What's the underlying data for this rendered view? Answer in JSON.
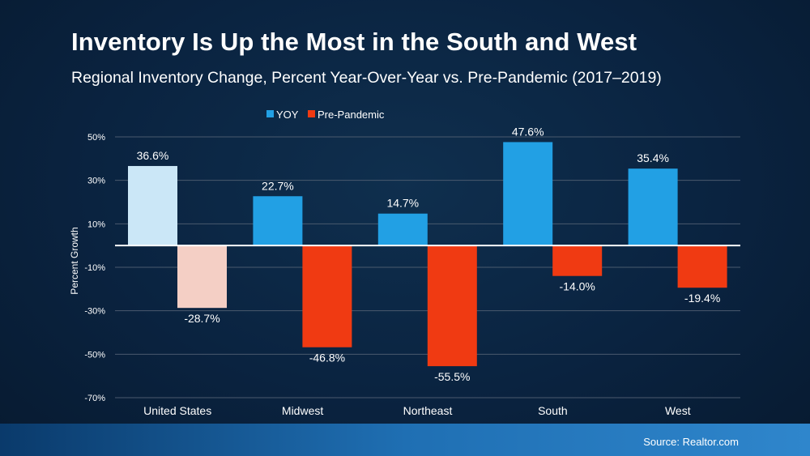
{
  "header": {
    "title": "Inventory Is Up the Most in the South and West",
    "subtitle": "Regional Inventory Change, Percent Year-Over-Year vs. Pre-Pandemic (2017–2019)"
  },
  "footer": {
    "source": "Source: Realtor.com"
  },
  "colors": {
    "yoy": "#22a0e4",
    "pre_pandemic": "#f03a12",
    "yoy_highlight_us": "#cbe7f7",
    "pre_pandemic_highlight_us": "#f4cfc5",
    "gridline": "#4a5a6e",
    "zero_line": "#ffffff"
  },
  "chart_data": {
    "type": "bar",
    "categories": [
      "United States",
      "Midwest",
      "Northeast",
      "South",
      "West"
    ],
    "series": [
      {
        "name": "YOY",
        "values": [
          36.6,
          22.7,
          14.7,
          47.6,
          35.4
        ],
        "labels": [
          "36.6%",
          "22.7%",
          "14.7%",
          "47.6%",
          "35.4%"
        ]
      },
      {
        "name": "Pre-Pandemic",
        "values": [
          -28.7,
          -46.8,
          -55.5,
          -14.0,
          -19.4
        ],
        "labels": [
          "-28.7%",
          "-46.8%",
          "-55.5%",
          "-14.0%",
          "-19.4%"
        ]
      }
    ],
    "ylabel": "Percent Growth",
    "ylim": [
      -70,
      50
    ],
    "yticks": [
      50,
      30,
      10,
      -10,
      -30,
      -50,
      -70
    ],
    "ytick_labels": [
      "50%",
      "30%",
      "10%",
      "-10%",
      "-30%",
      "-50%",
      "-70%"
    ],
    "grid": true,
    "legend_position": "top"
  }
}
